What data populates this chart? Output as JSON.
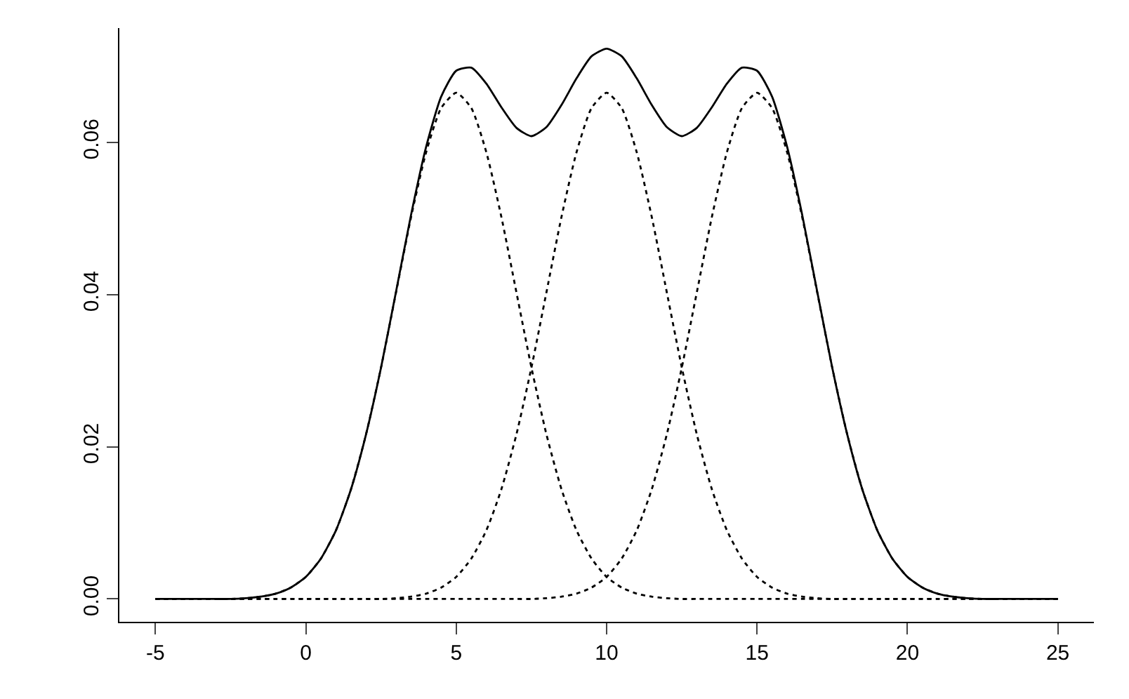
{
  "chart_data": {
    "type": "line",
    "x": [
      -5,
      -4.5,
      -4,
      -3.5,
      -3,
      -2.5,
      -2,
      -1.5,
      -1,
      -0.5,
      0,
      0.5,
      1,
      1.5,
      2,
      2.5,
      3,
      3.5,
      4,
      4.5,
      5,
      5.5,
      6,
      6.5,
      7,
      7.5,
      8,
      8.5,
      9,
      9.5,
      10,
      10.5,
      11,
      11.5,
      12,
      12.5,
      13,
      13.5,
      14,
      14.5,
      15,
      15.5,
      16,
      16.5,
      17,
      17.5,
      18,
      18.5,
      19,
      19.5,
      20,
      20.5,
      21,
      21.5,
      22,
      22.5,
      23,
      23.5,
      24,
      24.5,
      25
    ],
    "series": [
      {
        "color": "#000000",
        "line_style": "solid",
        "values": [
          0,
          0,
          0,
          0,
          0,
          0,
          0.0001,
          0.0003,
          0.0007,
          0.0015,
          0.0029,
          0.0053,
          0.009,
          0.0144,
          0.0216,
          0.0304,
          0.0404,
          0.0505,
          0.0594,
          0.066,
          0.0694,
          0.0698,
          0.0677,
          0.0646,
          0.0619,
          0.0608,
          0.062,
          0.0649,
          0.0684,
          0.0713,
          0.0723,
          0.0713,
          0.0684,
          0.0649,
          0.062,
          0.0608,
          0.0619,
          0.0646,
          0.0677,
          0.0698,
          0.0694,
          0.066,
          0.0594,
          0.0505,
          0.0404,
          0.0304,
          0.0216,
          0.0144,
          0.009,
          0.0053,
          0.0029,
          0.0015,
          0.0007,
          0.0003,
          0.0001,
          0,
          0,
          0,
          0,
          0,
          0
        ]
      },
      {
        "color": "#000000",
        "line_style": "dotted",
        "values": [
          0,
          0,
          0,
          0,
          0,
          0,
          0.0001,
          0.0003,
          0.0007,
          0.0015,
          0.0029,
          0.0053,
          0.009,
          0.0144,
          0.0216,
          0.0304,
          0.0403,
          0.0502,
          0.0587,
          0.0645,
          0.0665,
          0.0645,
          0.0587,
          0.0502,
          0.0403,
          0.0304,
          0.0216,
          0.0144,
          0.009,
          0.0053,
          0.0029,
          0.0015,
          0.0007,
          0.0003,
          0.0001,
          0,
          0,
          0,
          0,
          0,
          0,
          0,
          0,
          0,
          0,
          0,
          0,
          0,
          0,
          0,
          0,
          0,
          0,
          0,
          0,
          0,
          0,
          0,
          0,
          0,
          0
        ]
      },
      {
        "color": "#000000",
        "line_style": "dotted",
        "values": [
          0,
          0,
          0,
          0,
          0,
          0,
          0,
          0,
          0,
          0,
          0,
          0,
          0,
          0,
          0,
          0,
          0.0001,
          0.0003,
          0.0007,
          0.0015,
          0.0029,
          0.0053,
          0.009,
          0.0144,
          0.0216,
          0.0304,
          0.0403,
          0.0502,
          0.0587,
          0.0645,
          0.0665,
          0.0645,
          0.0587,
          0.0502,
          0.0403,
          0.0304,
          0.0216,
          0.0144,
          0.009,
          0.0053,
          0.0029,
          0.0015,
          0.0007,
          0.0003,
          0.0001,
          0,
          0,
          0,
          0,
          0,
          0,
          0,
          0,
          0,
          0,
          0,
          0,
          0,
          0,
          0,
          0
        ]
      },
      {
        "color": "#000000",
        "line_style": "dotted",
        "values": [
          0,
          0,
          0,
          0,
          0,
          0,
          0,
          0,
          0,
          0,
          0,
          0,
          0,
          0,
          0,
          0,
          0,
          0,
          0,
          0,
          0,
          0,
          0,
          0,
          0,
          0,
          0.0001,
          0.0003,
          0.0007,
          0.0015,
          0.0029,
          0.0053,
          0.009,
          0.0144,
          0.0216,
          0.0304,
          0.0403,
          0.0502,
          0.0587,
          0.0645,
          0.0665,
          0.0645,
          0.0587,
          0.0502,
          0.0403,
          0.0304,
          0.0216,
          0.0144,
          0.009,
          0.0053,
          0.0029,
          0.0015,
          0.0007,
          0.0003,
          0.0001,
          0,
          0,
          0,
          0,
          0,
          0
        ]
      }
    ],
    "xlim": [
      -6.2,
      26.2
    ],
    "ylim": [
      -0.003,
      0.075
    ],
    "xticks": [
      -5,
      0,
      5,
      10,
      15,
      20,
      25
    ],
    "yticks": [
      {
        "value": 0,
        "label": "0.00"
      },
      {
        "value": 0.02,
        "label": "0.02"
      },
      {
        "value": 0.04,
        "label": "0.04"
      },
      {
        "value": 0.06,
        "label": "0.06"
      }
    ],
    "marker": "none"
  }
}
